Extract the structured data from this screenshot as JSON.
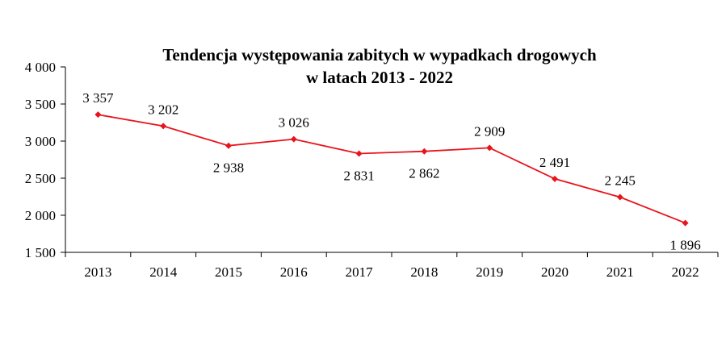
{
  "chart_data": {
    "type": "line",
    "title": [
      "Tendencja występowania zabitych w wypadkach drogowych",
      "w latach 2013 - 2022"
    ],
    "categories": [
      "2013",
      "2014",
      "2015",
      "2016",
      "2017",
      "2018",
      "2019",
      "2020",
      "2021",
      "2022"
    ],
    "series": [
      {
        "values": [
          3357,
          3202,
          2938,
          3026,
          2831,
          2862,
          2909,
          2491,
          2245,
          1896
        ],
        "labels": [
          "3 357",
          "3 202",
          "2 938",
          "3 026",
          "2 831",
          "2 862",
          "2 909",
          "2 491",
          "2 245",
          "1 896"
        ],
        "color": "#e8141c"
      }
    ],
    "ylim": [
      1500,
      4000
    ],
    "yticks": [
      1500,
      2000,
      2500,
      3000,
      3500,
      4000
    ],
    "ytick_labels": [
      "1 500",
      "2 000",
      "2 500",
      "3 000",
      "3 500",
      "4 000"
    ],
    "grid": false,
    "legend": "none"
  }
}
